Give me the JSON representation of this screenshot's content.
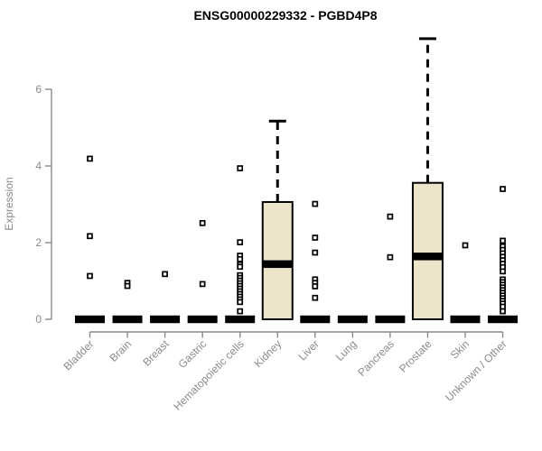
{
  "chart_data": {
    "type": "boxplot",
    "title": "ENSG00000229332 - PGBD4P8",
    "ylabel": "Expression",
    "xlabel": "",
    "yticks": [
      0,
      2,
      4,
      6
    ],
    "ylim": [
      0,
      7.45
    ],
    "grid": false,
    "legend": "none",
    "categories": [
      "Bladder",
      "Brain",
      "Breast",
      "Gastric",
      "Hematopoietic cells",
      "Kidney",
      "Liver",
      "Lung",
      "Pancreas",
      "Prostate",
      "Skin",
      "Unknown / Other"
    ],
    "boxes": [
      {
        "category": "Bladder",
        "q1": 0,
        "median": 0,
        "q3": 0,
        "whisker_low": 0,
        "whisker_high": 0,
        "outliers": [
          4.19,
          2.17,
          1.13
        ]
      },
      {
        "category": "Brain",
        "q1": 0,
        "median": 0,
        "q3": 0,
        "whisker_low": 0,
        "whisker_high": 0,
        "outliers": [
          0.95,
          0.87
        ]
      },
      {
        "category": "Breast",
        "q1": 0,
        "median": 0,
        "q3": 0,
        "whisker_low": 0,
        "whisker_high": 0,
        "outliers": [
          1.18
        ]
      },
      {
        "category": "Gastric",
        "q1": 0,
        "median": 0,
        "q3": 0,
        "whisker_low": 0,
        "whisker_high": 0,
        "outliers": [
          2.51,
          0.92
        ]
      },
      {
        "category": "Hematopoietic cells",
        "q1": 0,
        "median": 0,
        "q3": 0,
        "whisker_low": 0,
        "whisker_high": 0,
        "outliers": [
          3.94,
          2.01,
          1.66,
          1.57,
          1.43,
          1.37,
          1.15,
          1.08,
          1.01,
          0.94,
          0.87,
          0.8,
          0.73,
          0.66,
          0.59,
          0.52,
          0.45,
          0.21
        ]
      },
      {
        "category": "Kidney",
        "q1": 0,
        "median": 1.44,
        "q3": 3.06,
        "whisker_low": 0,
        "whisker_high": 5.17,
        "outliers": []
      },
      {
        "category": "Liver",
        "q1": 0,
        "median": 0,
        "q3": 0,
        "whisker_low": 0,
        "whisker_high": 0,
        "outliers": [
          3.01,
          2.13,
          1.74,
          1.04,
          0.95,
          0.86,
          0.56
        ]
      },
      {
        "category": "Lung",
        "q1": 0,
        "median": 0,
        "q3": 0,
        "whisker_low": 0,
        "whisker_high": 0,
        "outliers": []
      },
      {
        "category": "Pancreas",
        "q1": 0,
        "median": 0,
        "q3": 0,
        "whisker_low": 0,
        "whisker_high": 0,
        "outliers": [
          2.68,
          1.62
        ]
      },
      {
        "category": "Prostate",
        "q1": 0,
        "median": 1.64,
        "q3": 3.56,
        "whisker_low": 0,
        "whisker_high": 7.32,
        "outliers": []
      },
      {
        "category": "Skin",
        "q1": 0,
        "median": 0,
        "q3": 0,
        "whisker_low": 0,
        "whisker_high": 0,
        "outliers": [
          1.93
        ]
      },
      {
        "category": "Unknown / Other",
        "q1": 0,
        "median": 0,
        "q3": 0,
        "whisker_low": 0,
        "whisker_high": 0,
        "outliers": [
          3.4,
          2.05,
          1.9,
          1.81,
          1.72,
          1.63,
          1.54,
          1.45,
          1.36,
          1.25,
          1.04,
          0.97,
          0.9,
          0.83,
          0.76,
          0.69,
          0.62,
          0.55,
          0.48,
          0.41,
          0.33,
          0.21
        ]
      }
    ],
    "colors": {
      "box_fill": "#ece5ca",
      "box_border": "#000000",
      "median": "#000000",
      "whisker": "#000000",
      "outlier_border": "#000000",
      "outlier_fill": "#ffffff",
      "axis": "#888888",
      "tick_text": "#8a8a8a",
      "title_text": "#000000",
      "background": "#ffffff"
    }
  }
}
